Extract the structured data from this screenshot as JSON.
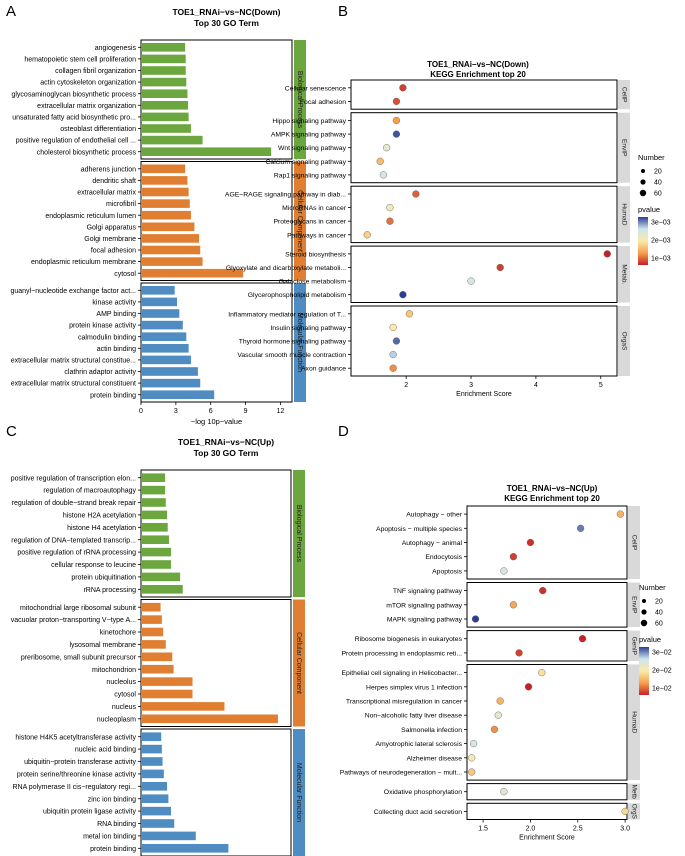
{
  "colors": {
    "bp": "#6BA73E",
    "cc": "#E07F32",
    "mf": "#4E8CC2",
    "strip": "#D9D9D9",
    "grad_low": "#C62026",
    "grad_mid": "#FBE9A8",
    "grad_lmid": "#F5A04B",
    "grad_hmid": "#CDE5EF",
    "grad_high": "#2C3E94"
  },
  "panel_labels": [
    "A",
    "B",
    "C",
    "D"
  ],
  "chart_data": [
    {
      "panel": "A",
      "type": "bar",
      "title": "TOE1_RNAi−vs−NC(Down)",
      "subtitle": "Top 30 GO Term",
      "xlabel": "−log 10p−value",
      "xlim": [
        0,
        13
      ],
      "xticks": [
        0,
        3,
        6,
        9,
        12
      ],
      "groups": [
        {
          "name": "Biological Process",
          "key": "bp",
          "items": [
            {
              "label": "angiogenesis",
              "value": 3.8
            },
            {
              "label": "hematopoietic stem cell proliferation",
              "value": 3.85
            },
            {
              "label": "collagen fibril organization",
              "value": 3.85
            },
            {
              "label": "actin cytoskeleton organization",
              "value": 3.9
            },
            {
              "label": "glycosaminoglycan biosynthetic process",
              "value": 4.0
            },
            {
              "label": "extracellular matrix organization",
              "value": 4.05
            },
            {
              "label": "unsaturated fatty acid biosynthetic pro...",
              "value": 4.1
            },
            {
              "label": "osteoblast differentiation",
              "value": 4.3
            },
            {
              "label": "positive regulation of endothelial cell ...",
              "value": 5.3
            },
            {
              "label": "cholesterol biosynthetic process",
              "value": 11.2
            }
          ]
        },
        {
          "name": "Cellular Component",
          "key": "cc",
          "items": [
            {
              "label": "adherens junction",
              "value": 3.8
            },
            {
              "label": "dendritic shaft",
              "value": 4.0
            },
            {
              "label": "extracellular matrix",
              "value": 4.1
            },
            {
              "label": "microfibril",
              "value": 4.2
            },
            {
              "label": "endoplasmic reticulum lumen",
              "value": 4.3
            },
            {
              "label": "Golgi apparatus",
              "value": 4.6
            },
            {
              "label": "Golgi membrane",
              "value": 5.0
            },
            {
              "label": "focal adhesion",
              "value": 5.1
            },
            {
              "label": "endoplasmic reticulum membrane",
              "value": 5.3
            },
            {
              "label": "cytosol",
              "value": 8.8
            }
          ]
        },
        {
          "name": "Molecular Function",
          "key": "mf",
          "items": [
            {
              "label": "guanyl−nucleotide exchange factor act...",
              "value": 2.9
            },
            {
              "label": "kinase activity",
              "value": 3.1
            },
            {
              "label": "AMP binding",
              "value": 3.3
            },
            {
              "label": "protein kinase activity",
              "value": 3.6
            },
            {
              "label": "calmodulin binding",
              "value": 3.9
            },
            {
              "label": "actin binding",
              "value": 4.1
            },
            {
              "label": "extracellular matrix structural constitue...",
              "value": 4.3
            },
            {
              "label": "clathrin adaptor activity",
              "value": 4.9
            },
            {
              "label": "extracellular matrix structural constituent",
              "value": 5.1
            },
            {
              "label": "protein binding",
              "value": 6.3
            }
          ]
        }
      ]
    },
    {
      "panel": "B",
      "type": "scatter",
      "title": "TOE1_RNAi−vs−NC(Down)",
      "subtitle": "KEGG Enrichment top 20",
      "xlabel": "Enrichment Score",
      "xlim": [
        1.15,
        5.25
      ],
      "xticks": [
        2,
        3,
        4,
        5
      ],
      "legend": {
        "size_title": "Number",
        "sizes": [
          20,
          40,
          60
        ],
        "color_title": "pvalue",
        "color_ticks": [
          "3e−03",
          "2e−03",
          "1e−03"
        ]
      },
      "groups": [
        {
          "name": "CellP",
          "items": [
            {
              "label": "Cellular senescence",
              "x": 1.95,
              "p": 0.0003
            },
            {
              "label": "Focal adhesion",
              "x": 1.85,
              "p": 0.0004
            }
          ]
        },
        {
          "name": "EnvIP",
          "items": [
            {
              "label": "Hippo signaling pathway",
              "x": 1.85,
              "p": 0.0009
            },
            {
              "label": "AMPK signaling pathway",
              "x": 1.85,
              "p": 0.0032
            },
            {
              "label": "Wnt signaling pathway",
              "x": 1.7,
              "p": 0.0021
            },
            {
              "label": "Calcium signaling pathway",
              "x": 1.6,
              "p": 0.0012
            },
            {
              "label": "Rap1 signaling pathway",
              "x": 1.65,
              "p": 0.0024
            }
          ]
        },
        {
          "name": "HumaD",
          "items": [
            {
              "label": "AGE−RAGE signaling pathway in diab...",
              "x": 2.15,
              "p": 0.0005
            },
            {
              "label": "MicroRNAs in cancer",
              "x": 1.75,
              "p": 0.0019
            },
            {
              "label": "Proteoglycans in cancer",
              "x": 1.75,
              "p": 0.0006
            },
            {
              "label": "Pathways in cancer",
              "x": 1.4,
              "p": 0.0014
            }
          ]
        },
        {
          "name": "Metab.",
          "items": [
            {
              "label": "Steroid biosynthesis",
              "x": 5.1,
              "p": 0.0001
            },
            {
              "label": "Glyoxylate and dicarboxylate metaboli...",
              "x": 3.45,
              "p": 0.0003
            },
            {
              "label": "Galactose metabolism",
              "x": 3.0,
              "p": 0.0023
            },
            {
              "label": "Glycerophospholipid metabolism",
              "x": 1.95,
              "p": 0.0033
            }
          ]
        },
        {
          "name": "OrgaS",
          "items": [
            {
              "label": "Inflammatory mediator regulation of T...",
              "x": 2.05,
              "p": 0.0013
            },
            {
              "label": "Insulin signaling pathway",
              "x": 1.8,
              "p": 0.0017
            },
            {
              "label": "Thyroid hormone signaling pathway",
              "x": 1.85,
              "p": 0.0031
            },
            {
              "label": "Vascular smooth muscle contraction",
              "x": 1.8,
              "p": 0.0026
            },
            {
              "label": "Axon guidance",
              "x": 1.8,
              "p": 0.0008
            }
          ]
        }
      ]
    },
    {
      "panel": "C",
      "type": "bar",
      "title": "TOE1_RNAi−vs−NC(Up)",
      "subtitle": "Top 30 GO Term",
      "xlabel": "−log 10p−value",
      "xlim": [
        0,
        23
      ],
      "xticks": [
        0,
        5,
        10,
        15,
        20
      ],
      "groups": [
        {
          "name": "Biological Process",
          "key": "bp",
          "items": [
            {
              "label": "positive regulation of transcription elon...",
              "value": 3.7
            },
            {
              "label": "regulation of macroautophagy",
              "value": 3.7
            },
            {
              "label": "regulation of double−strand break repair",
              "value": 3.8
            },
            {
              "label": "histone H2A acetylation",
              "value": 4.0
            },
            {
              "label": "histone H4 acetylation",
              "value": 4.1
            },
            {
              "label": "regulation of DNA−templated transcrip...",
              "value": 4.3
            },
            {
              "label": "positive regulation of rRNA processing",
              "value": 4.6
            },
            {
              "label": "cellular response to leucine",
              "value": 4.6
            },
            {
              "label": "protein ubiquitination",
              "value": 6.0
            },
            {
              "label": "rRNA processing",
              "value": 6.4
            }
          ]
        },
        {
          "name": "Cellular Component",
          "key": "cc",
          "items": [
            {
              "label": "mitochondrial large ribosomal subunit",
              "value": 3.0
            },
            {
              "label": "vacuolar proton−transporting V−type A...",
              "value": 3.2
            },
            {
              "label": "kinetochore",
              "value": 3.4
            },
            {
              "label": "lysosomal membrane",
              "value": 3.8
            },
            {
              "label": "preribosome, small subunit precursor",
              "value": 4.8
            },
            {
              "label": "mitochondrion",
              "value": 5.0
            },
            {
              "label": "nucleolus",
              "value": 7.9
            },
            {
              "label": "cytosol",
              "value": 7.9
            },
            {
              "label": "nucleus",
              "value": 12.8
            },
            {
              "label": "nucleoplasm",
              "value": 21.0
            }
          ]
        },
        {
          "name": "Molecular Function",
          "key": "mf",
          "items": [
            {
              "label": "histone H4K5 acetyltransferase activity",
              "value": 3.1
            },
            {
              "label": "nucleic acid binding",
              "value": 3.2
            },
            {
              "label": "ubiquitin−protein transferase activity",
              "value": 3.3
            },
            {
              "label": "protein serine/threonine kinase activity",
              "value": 3.5
            },
            {
              "label": "RNA polymerase II cis−regulatory regi...",
              "value": 4.0
            },
            {
              "label": "zinc ion binding",
              "value": 4.2
            },
            {
              "label": "ubiquitin protein ligase activity",
              "value": 4.6
            },
            {
              "label": "RNA binding",
              "value": 5.1
            },
            {
              "label": "metal ion binding",
              "value": 8.4
            },
            {
              "label": "protein binding",
              "value": 13.4
            }
          ]
        }
      ]
    },
    {
      "panel": "D",
      "type": "scatter",
      "title": "TOE1_RNAi−vs−NC(Up)",
      "subtitle": "KEGG Enrichment top 20",
      "xlabel": "Enrichment Score",
      "xlim": [
        1.33,
        3.02
      ],
      "xticks": [
        1.5,
        2.0,
        2.5,
        3.0
      ],
      "xtick_labels": [
        "1.5",
        "2.0",
        "2.5",
        "3.0"
      ],
      "legend": {
        "size_title": "Number",
        "sizes": [
          20,
          40,
          60
        ],
        "color_title": "pvalue",
        "color_ticks": [
          "3e−02",
          "2e−02",
          "1e−02"
        ]
      },
      "groups": [
        {
          "name": "CellP",
          "items": [
            {
              "label": "Autophagy − other",
              "x": 2.95,
              "p": 0.012
            },
            {
              "label": "Apoptosis − multiple species",
              "x": 2.53,
              "p": 0.031
            },
            {
              "label": "Autophagy − animal",
              "x": 2.0,
              "p": 0.003
            },
            {
              "label": "Endocytosis",
              "x": 1.82,
              "p": 0.004
            },
            {
              "label": "Apoptosis",
              "x": 1.72,
              "p": 0.024
            }
          ]
        },
        {
          "name": "EnvIP",
          "items": [
            {
              "label": "TNF signaling pathway",
              "x": 2.13,
              "p": 0.003
            },
            {
              "label": "mTOR signaling pathway",
              "x": 1.82,
              "p": 0.011
            },
            {
              "label": "MAPK signaling pathway",
              "x": 1.42,
              "p": 0.034
            }
          ]
        },
        {
          "name": "GenIP",
          "items": [
            {
              "label": "Ribosome biogenesis in eukaryotes",
              "x": 2.55,
              "p": 0.002
            },
            {
              "label": "Protein processing in endoplasmic reti...",
              "x": 1.88,
              "p": 0.004
            }
          ]
        },
        {
          "name": "HumaD",
          "items": [
            {
              "label": "Epithelial cell signaling in Helicobacter...",
              "x": 2.12,
              "p": 0.017
            },
            {
              "label": "Herpes simplex virus 1 infection",
              "x": 1.98,
              "p": 0.002
            },
            {
              "label": "Transcriptional misregulation in cancer",
              "x": 1.68,
              "p": 0.012
            },
            {
              "label": "Non−alcoholic fatty liver disease",
              "x": 1.66,
              "p": 0.022
            },
            {
              "label": "Salmonella infection",
              "x": 1.62,
              "p": 0.009
            },
            {
              "label": "Amyotrophic lateral sclerosis",
              "x": 1.4,
              "p": 0.024
            },
            {
              "label": "Alzheimer disease",
              "x": 1.38,
              "p": 0.019
            },
            {
              "label": "Pathways of neurodegeneration − mult...",
              "x": 1.38,
              "p": 0.014
            }
          ]
        },
        {
          "name": "Metb",
          "items": [
            {
              "label": "Oxidative phosphorylation",
              "x": 1.72,
              "p": 0.023
            }
          ]
        },
        {
          "name": "OrgS",
          "items": [
            {
              "label": "Collecting duct acid secretion",
              "x": 3.0,
              "p": 0.016
            }
          ]
        }
      ]
    }
  ]
}
